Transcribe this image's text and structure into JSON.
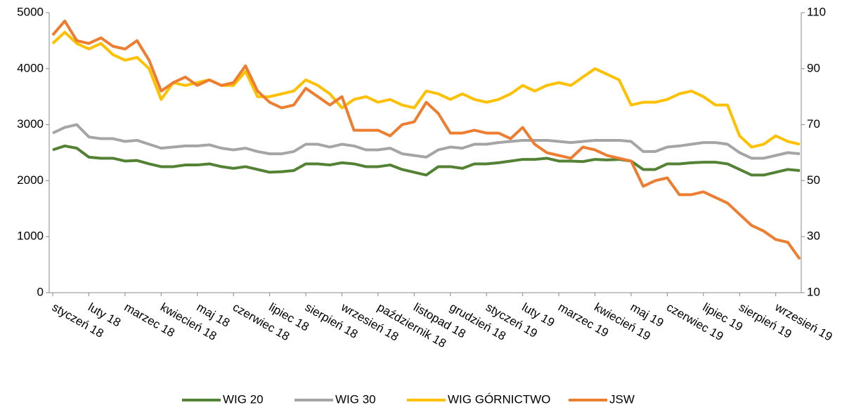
{
  "chart_data": {
    "type": "line",
    "categories": [
      "styczeń 18",
      null,
      null,
      "luty 18",
      null,
      null,
      "marzec 18",
      null,
      null,
      "kwiecień 18",
      null,
      null,
      "maj 18",
      null,
      null,
      "czerwiec 18",
      null,
      null,
      "lipiec 18",
      null,
      null,
      "sierpień 18",
      null,
      null,
      "wrzesień 18",
      null,
      null,
      "październik 18",
      null,
      null,
      "listopad 18",
      null,
      null,
      "grudzień 18",
      null,
      null,
      "styczeń 19",
      null,
      null,
      "luty 19",
      null,
      null,
      "marzec 19",
      null,
      null,
      "kwiecień 19",
      null,
      null,
      "maj 19",
      null,
      null,
      "czerwiec 19",
      null,
      null,
      "lipiec 19",
      null,
      null,
      "sierpień 19",
      null,
      null,
      "wrzesień 19",
      null,
      null
    ],
    "series": [
      {
        "name": "WIG 20",
        "color": "#548235",
        "values": [
          2550,
          2620,
          2580,
          2420,
          2400,
          2400,
          2350,
          2360,
          2300,
          2250,
          2250,
          2280,
          2280,
          2300,
          2250,
          2220,
          2250,
          2200,
          2150,
          2160,
          2180,
          2300,
          2300,
          2280,
          2320,
          2300,
          2250,
          2250,
          2280,
          2200,
          2150,
          2100,
          2250,
          2250,
          2220,
          2300,
          2300,
          2320,
          2350,
          2380,
          2380,
          2400,
          2350,
          2350,
          2340,
          2380,
          2370,
          2380,
          2350,
          2200,
          2200,
          2300,
          2300,
          2320,
          2330,
          2330,
          2300,
          2200,
          2100,
          2100,
          2150,
          2200,
          2180
        ]
      },
      {
        "name": "WIG 30",
        "color": "#a5a5a5",
        "values": [
          2850,
          2950,
          3000,
          2780,
          2750,
          2750,
          2700,
          2720,
          2650,
          2580,
          2600,
          2620,
          2620,
          2640,
          2580,
          2550,
          2580,
          2520,
          2480,
          2480,
          2520,
          2650,
          2650,
          2600,
          2650,
          2620,
          2550,
          2550,
          2580,
          2480,
          2450,
          2420,
          2550,
          2600,
          2580,
          2650,
          2650,
          2680,
          2700,
          2720,
          2720,
          2720,
          2700,
          2680,
          2700,
          2720,
          2720,
          2720,
          2700,
          2520,
          2520,
          2600,
          2620,
          2650,
          2680,
          2680,
          2650,
          2500,
          2400,
          2400,
          2450,
          2500,
          2480
        ]
      },
      {
        "name": "WIG GÓRNICTWO",
        "color": "#ffc000",
        "values": [
          4450,
          4650,
          4450,
          4350,
          4450,
          4250,
          4150,
          4200,
          4000,
          3450,
          3750,
          3700,
          3750,
          3800,
          3700,
          3700,
          3950,
          3500,
          3500,
          3550,
          3600,
          3800,
          3700,
          3550,
          3300,
          3450,
          3500,
          3400,
          3450,
          3350,
          3300,
          3600,
          3550,
          3450,
          3550,
          3450,
          3400,
          3450,
          3550,
          3700,
          3600,
          3700,
          3750,
          3700,
          3850,
          4000,
          3900,
          3800,
          3350,
          3400,
          3400,
          3450,
          3550,
          3600,
          3500,
          3350,
          3350,
          2800,
          2600,
          2650,
          2800,
          2700,
          2650
        ]
      },
      {
        "name": "JSW",
        "color": "#ed7d31",
        "axis": "y2",
        "values": [
          102,
          107,
          100,
          99,
          101,
          98,
          97,
          100,
          93,
          82,
          85,
          87,
          84,
          86,
          84,
          85,
          91,
          82,
          78,
          76,
          77,
          83,
          80,
          77,
          80,
          68,
          68,
          68,
          66,
          70,
          71,
          78,
          74,
          67,
          67,
          68,
          67,
          67,
          65,
          69,
          63,
          60,
          59,
          58,
          62,
          61,
          59,
          58,
          57,
          48,
          50,
          51,
          45,
          45,
          46,
          44,
          42,
          38,
          34,
          32,
          29,
          28,
          22
        ]
      }
    ],
    "ylim": [
      0,
      5000
    ],
    "yticks": [
      0,
      1000,
      2000,
      3000,
      4000,
      5000
    ],
    "y2lim": [
      10,
      110
    ],
    "y2ticks": [
      10,
      30,
      50,
      70,
      90,
      110
    ],
    "legend": "bottom"
  }
}
